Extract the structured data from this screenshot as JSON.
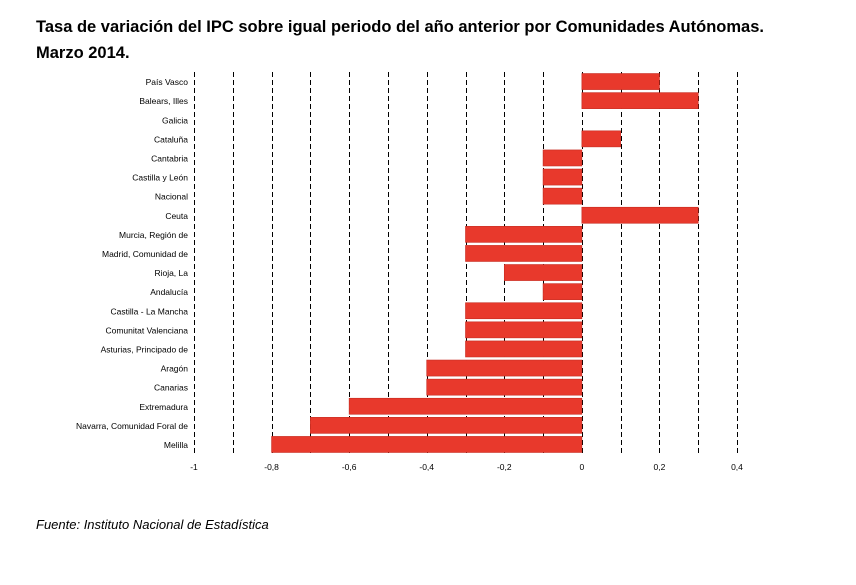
{
  "title_line1": "Tasa de variación del IPC sobre igual periodo del año anterior por Comunidades Autónomas.",
  "title_line2": "Marzo 2014.",
  "source": "Fuente: Instituto Nacional de Estadística",
  "colors": {
    "bar": "#e8392c",
    "bar_stroke": "#c62b20",
    "grid": "#000000"
  },
  "chart_data": {
    "type": "bar",
    "orientation": "horizontal",
    "title": "Tasa de variación del IPC sobre igual periodo del año anterior por Comunidades Autónomas. Marzo 2014.",
    "xlabel": "",
    "ylabel": "",
    "xlim": [
      -1,
      0.4
    ],
    "grid": true,
    "categories": [
      "País Vasco",
      "Balears, Illes",
      "Galicia",
      "Cataluña",
      "Cantabria",
      "Castilla y León",
      "Nacional",
      "Ceuta",
      "Murcia, Región de",
      "Madrid, Comunidad de",
      "Rioja, La",
      "Andalucía",
      "Castilla - La Mancha",
      "Comunitat Valenciana",
      "Asturias, Principado de",
      "Aragón",
      "Canarias",
      "Extremadura",
      "Navarra, Comunidad Foral de",
      "Melilla"
    ],
    "values": [
      0.2,
      0.3,
      0,
      0.1,
      -0.1,
      -0.1,
      -0.1,
      0.3,
      -0.3,
      -0.3,
      -0.2,
      -0.1,
      -0.3,
      -0.3,
      -0.3,
      -0.4,
      -0.4,
      -0.6,
      -0.7,
      -0.8
    ],
    "ticks": [
      -1,
      -0.8,
      -0.6,
      -0.4,
      -0.2,
      0,
      0.2,
      0.4
    ],
    "tick_labels": [
      "-1",
      "-0,8",
      "-0,6",
      "-0,4",
      "-0,2",
      "0",
      "0,2",
      "0,4"
    ]
  }
}
